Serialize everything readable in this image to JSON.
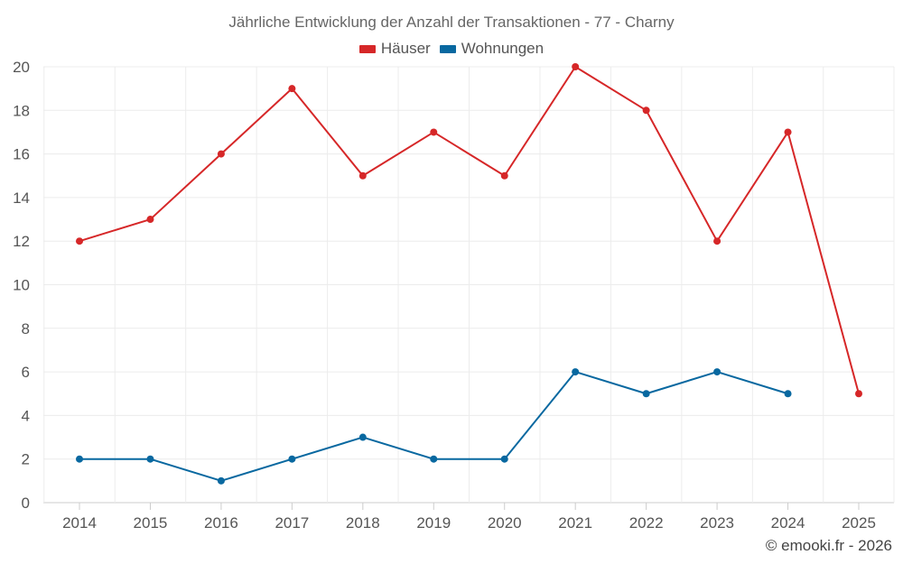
{
  "chart_data": {
    "type": "line",
    "title": "Jährliche Entwicklung der Anzahl der Transaktionen - 77 - Charny",
    "categories": [
      "2014",
      "2015",
      "2016",
      "2017",
      "2018",
      "2019",
      "2020",
      "2021",
      "2022",
      "2023",
      "2024",
      "2025"
    ],
    "series": [
      {
        "name": "Häuser",
        "color": "#d62728",
        "values": [
          12,
          13,
          16,
          19,
          15,
          17,
          15,
          20,
          18,
          12,
          17,
          5
        ]
      },
      {
        "name": "Wohnungen",
        "color": "#0868a0",
        "values": [
          2,
          2,
          1,
          2,
          3,
          2,
          2,
          6,
          5,
          6,
          5,
          null
        ]
      }
    ],
    "ylim": [
      0,
      20
    ],
    "yticks": [
      0,
      2,
      4,
      6,
      8,
      10,
      12,
      14,
      16,
      18,
      20
    ],
    "xlabel": "",
    "ylabel": "",
    "grid": true,
    "legend_position": "top-center"
  },
  "footer": {
    "copyright": "© emooki.fr - 2026"
  }
}
